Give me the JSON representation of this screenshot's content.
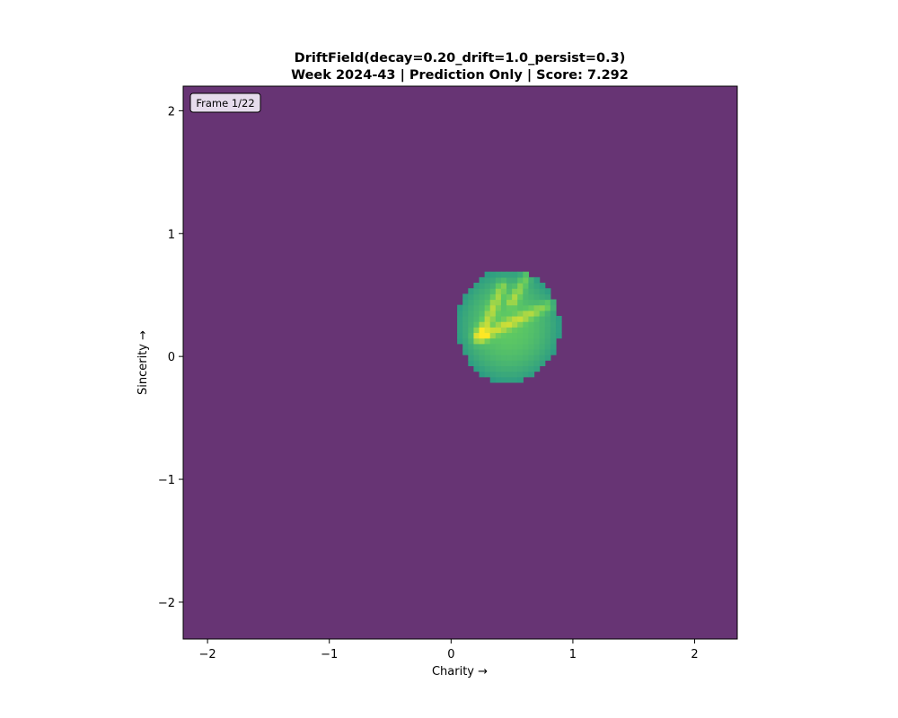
{
  "chart_data": {
    "type": "heatmap",
    "title": "DriftField(decay=0.20_drift=1.0_persist=0.3)",
    "subtitle": "Week 2024-43 | Prediction Only | Score: 7.292",
    "xlabel": "Charity →",
    "ylabel": "Sincerity →",
    "xlim": [
      -2.2,
      2.35
    ],
    "ylim": [
      -2.3,
      2.2
    ],
    "xticks": [
      -2,
      -1,
      0,
      1,
      2
    ],
    "yticks": [
      -2,
      -1,
      0,
      1,
      2
    ],
    "xtick_labels": [
      "−2",
      "−1",
      "0",
      "1",
      "2"
    ],
    "ytick_labels": [
      "−2",
      "−1",
      "0",
      "1",
      "2"
    ],
    "colormap": "viridis",
    "background_color": "#673474",
    "grid": false,
    "annotation": "Frame 1/22",
    "blob": {
      "center": [
        0.47,
        0.25
      ],
      "radius_x": 0.42,
      "radius_y": 0.46,
      "cell_size": 0.045,
      "peak_point": [
        0.25,
        0.19
      ],
      "ridges": [
        {
          "from": [
            0.22,
            0.15
          ],
          "to": [
            0.8,
            0.42
          ]
        },
        {
          "from": [
            0.28,
            0.25
          ],
          "to": [
            0.42,
            0.58
          ]
        },
        {
          "from": [
            0.5,
            0.45
          ],
          "to": [
            0.62,
            0.65
          ]
        }
      ]
    }
  }
}
